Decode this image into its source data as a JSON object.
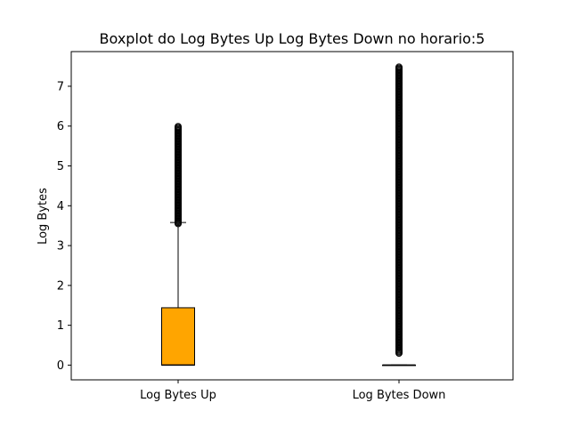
{
  "chart_data": {
    "type": "box",
    "title": "Boxplot do Log Bytes Up  Log Bytes Down no horario:5",
    "xlabel": "",
    "ylabel": "Log Bytes",
    "ylim": [
      -0.37,
      7.87
    ],
    "yticks": [
      0,
      1,
      2,
      3,
      4,
      5,
      6,
      7
    ],
    "grid": false,
    "categories": [
      "Log Bytes Up",
      "Log Bytes Down"
    ],
    "boxes": [
      {
        "label": "Log Bytes Up",
        "whisker_low": 0,
        "q1": 0,
        "median": 0,
        "q3": 1.44,
        "whisker_high": 3.58,
        "fliers_range": [
          3.55,
          6.0
        ],
        "fill": "#ffa500"
      },
      {
        "label": "Log Bytes Down",
        "whisker_low": 0,
        "q1": 0,
        "median": 0,
        "q3": 0,
        "whisker_high": 0,
        "fliers_range": [
          0.3,
          7.49
        ],
        "fill": "#ffa500"
      }
    ],
    "colors": {
      "box_fill": "#ffa500",
      "line": "#000000"
    }
  }
}
